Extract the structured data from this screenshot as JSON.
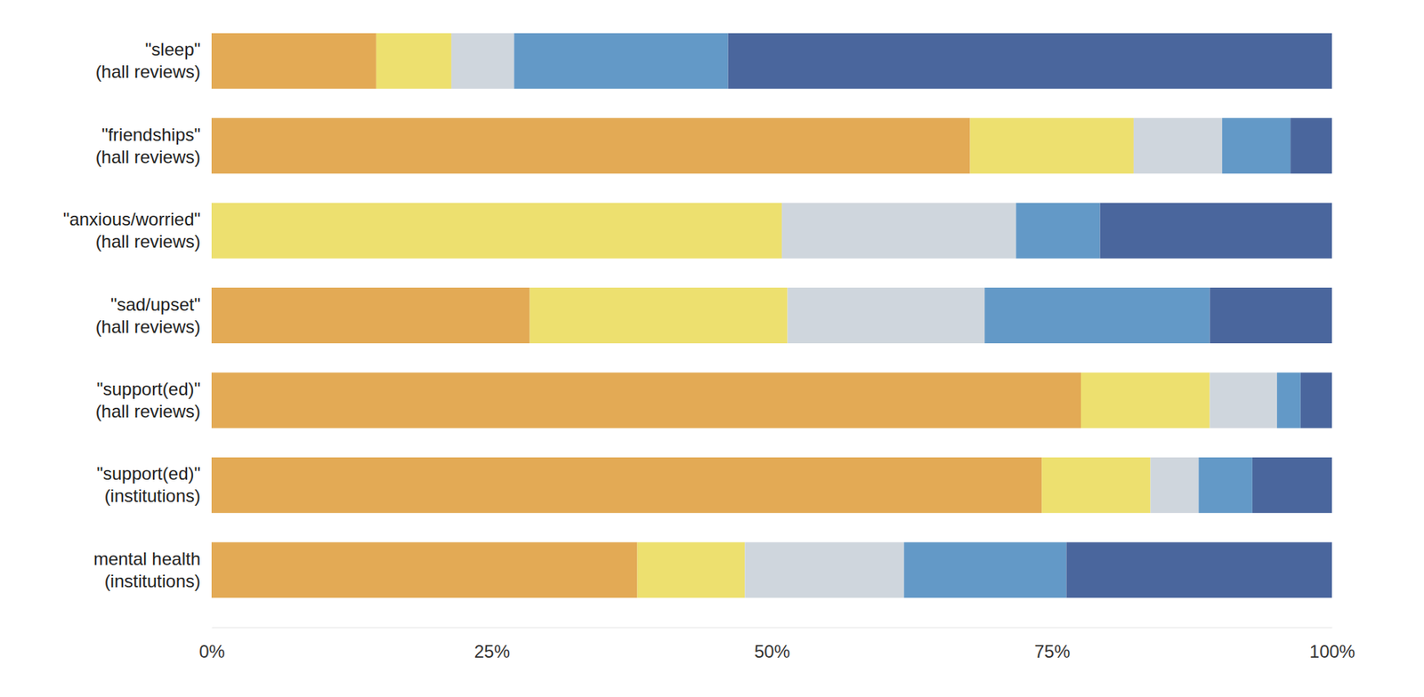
{
  "chart_data": {
    "type": "bar",
    "orientation": "horizontal",
    "stacked": true,
    "categories": [
      "\"sleep\"\n(hall reviews)",
      "\"friendships\"\n(hall reviews)",
      "\"anxious/worried\"\n(hall reviews)",
      "\"sad/upset\"\n(hall reviews)",
      "\"support(ed)\"\n(hall reviews)",
      "\"support(ed)\"\n(institutions)",
      "mental health\n(institutions)"
    ],
    "series": [
      {
        "color": "#e3aa55",
        "values": [
          14.7,
          67.7,
          0,
          28.4,
          77.6,
          74.1,
          38.0
        ]
      },
      {
        "color": "#ede06f",
        "values": [
          6.7,
          14.6,
          50.9,
          23.0,
          11.5,
          9.7,
          9.6
        ]
      },
      {
        "color": "#cfd6dd",
        "values": [
          5.6,
          7.9,
          20.9,
          17.6,
          6.0,
          4.3,
          14.2
        ]
      },
      {
        "color": "#6399c7",
        "values": [
          19.1,
          6.1,
          7.5,
          20.1,
          2.1,
          4.8,
          14.5
        ]
      },
      {
        "color": "#4a669d",
        "values": [
          53.9,
          3.7,
          20.7,
          10.9,
          2.8,
          7.1,
          23.7
        ]
      }
    ],
    "xlim": [
      0,
      100
    ],
    "xticks": [
      {
        "value": 0,
        "label": "0%"
      },
      {
        "value": 25,
        "label": "25%"
      },
      {
        "value": 50,
        "label": "50%"
      },
      {
        "value": 75,
        "label": "75%"
      },
      {
        "value": 100,
        "label": "100%"
      }
    ],
    "grid": false
  }
}
